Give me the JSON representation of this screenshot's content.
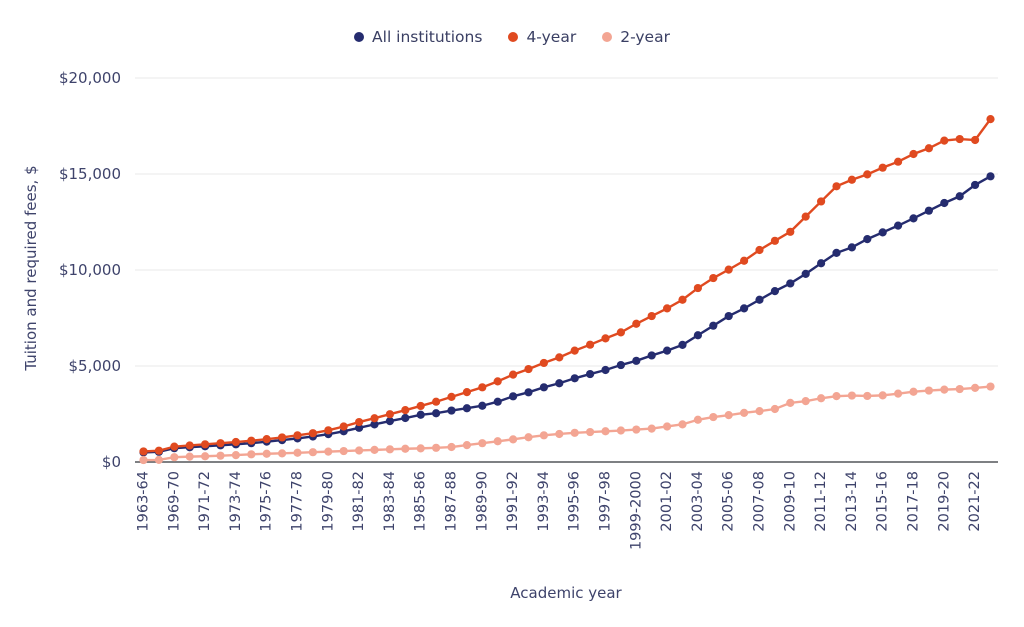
{
  "legend": [
    {
      "id": "all-institutions",
      "label": "All institutions",
      "color": "#252c6f"
    },
    {
      "id": "4-year",
      "label": "4-year",
      "color": "#e04a20"
    },
    {
      "id": "2-year",
      "label": "2-year",
      "color": "#f3a593"
    }
  ],
  "axes": {
    "y_title": "Tuition and required fees, $",
    "x_title": "Academic year",
    "y_ticks": [
      "$0",
      "$5,000",
      "$10,000",
      "$15,000",
      "$20,000"
    ],
    "y_tick_values": [
      0,
      5000,
      10000,
      15000,
      20000
    ],
    "y_range": [
      0,
      20000
    ],
    "grid": "horizontal-only",
    "legend_position": "top-center"
  },
  "chart_data": {
    "type": "line",
    "title": "",
    "xlabel": "Academic year",
    "ylabel": "Tuition and required fees, $",
    "ylim": [
      0,
      20000
    ],
    "x": [
      "1963-64",
      "1964-65",
      "1969-70",
      "1970-71",
      "1971-72",
      "1972-73",
      "1973-74",
      "1974-75",
      "1975-76",
      "1976-77",
      "1977-78",
      "1978-79",
      "1979-80",
      "1980-81",
      "1981-82",
      "1982-83",
      "1983-84",
      "1984-85",
      "1985-86",
      "1986-87",
      "1987-88",
      "1988-89",
      "1989-90",
      "1990-91",
      "1991-92",
      "1992-93",
      "1993-94",
      "1994-95",
      "1995-96",
      "1996-97",
      "1997-98",
      "1998-99",
      "1999-2000",
      "2000-01",
      "2001-02",
      "2002-03",
      "2003-04",
      "2004-05",
      "2005-06",
      "2006-07",
      "2007-08",
      "2008-09",
      "2009-10",
      "2010-11",
      "2011-12",
      "2012-13",
      "2013-14",
      "2014-15",
      "2015-16",
      "2016-17",
      "2017-18",
      "2018-19",
      "2019-20",
      "2020-21",
      "2021-22",
      "2022-23"
    ],
    "x_tick_labels_shown": [
      "1963-64",
      "1969-70",
      "1971-72",
      "1973-74",
      "1975-76",
      "1977-78",
      "1979-80",
      "1981-82",
      "1983-84",
      "1985-86",
      "1987-88",
      "1989-90",
      "1991-92",
      "1993-94",
      "1995-96",
      "1997-98",
      "1999-2000",
      "2001-02",
      "2003-04",
      "2005-06",
      "2007-08",
      "2009-10",
      "2011-12",
      "2013-14",
      "2015-16",
      "2017-18",
      "2019-20",
      "2021-22"
    ],
    "series": [
      {
        "id": "all-institutions",
        "name": "All institutions",
        "color": "#252c6f",
        "values": [
          500,
          530,
          720,
          770,
          820,
          870,
          920,
          980,
          1060,
          1140,
          1230,
          1330,
          1450,
          1600,
          1780,
          1960,
          2130,
          2290,
          2460,
          2540,
          2680,
          2800,
          2930,
          3140,
          3420,
          3630,
          3890,
          4100,
          4360,
          4580,
          4790,
          5050,
          5270,
          5550,
          5800,
          6100,
          6600,
          7100,
          7600,
          8000,
          8450,
          8900,
          9300,
          9800,
          10350,
          10890,
          11180,
          11610,
          11960,
          12310,
          12690,
          13090,
          13490,
          13840,
          14430,
          14880
        ]
      },
      {
        "id": "4-year",
        "name": "4-year",
        "color": "#e04a20",
        "values": [
          550,
          590,
          800,
          860,
          920,
          980,
          1040,
          1110,
          1190,
          1280,
          1390,
          1500,
          1650,
          1850,
          2080,
          2280,
          2490,
          2700,
          2920,
          3140,
          3390,
          3640,
          3890,
          4200,
          4550,
          4840,
          5160,
          5450,
          5800,
          6110,
          6440,
          6750,
          7200,
          7600,
          8000,
          8450,
          9060,
          9580,
          10020,
          10480,
          11040,
          11520,
          11990,
          12780,
          13570,
          14360,
          14700,
          14980,
          15330,
          15640,
          16040,
          16340,
          16740,
          16820,
          16770,
          17860
        ]
      },
      {
        "id": "2-year",
        "name": "2-year",
        "color": "#f3a593",
        "values": [
          100,
          110,
          250,
          280,
          300,
          330,
          360,
          400,
          430,
          450,
          480,
          510,
          540,
          570,
          600,
          630,
          660,
          690,
          710,
          740,
          780,
          880,
          980,
          1080,
          1180,
          1290,
          1390,
          1460,
          1520,
          1560,
          1600,
          1640,
          1690,
          1740,
          1850,
          1960,
          2200,
          2340,
          2440,
          2560,
          2650,
          2760,
          3080,
          3170,
          3320,
          3430,
          3460,
          3440,
          3470,
          3560,
          3660,
          3720,
          3770,
          3800,
          3860,
          3930
        ]
      }
    ]
  }
}
